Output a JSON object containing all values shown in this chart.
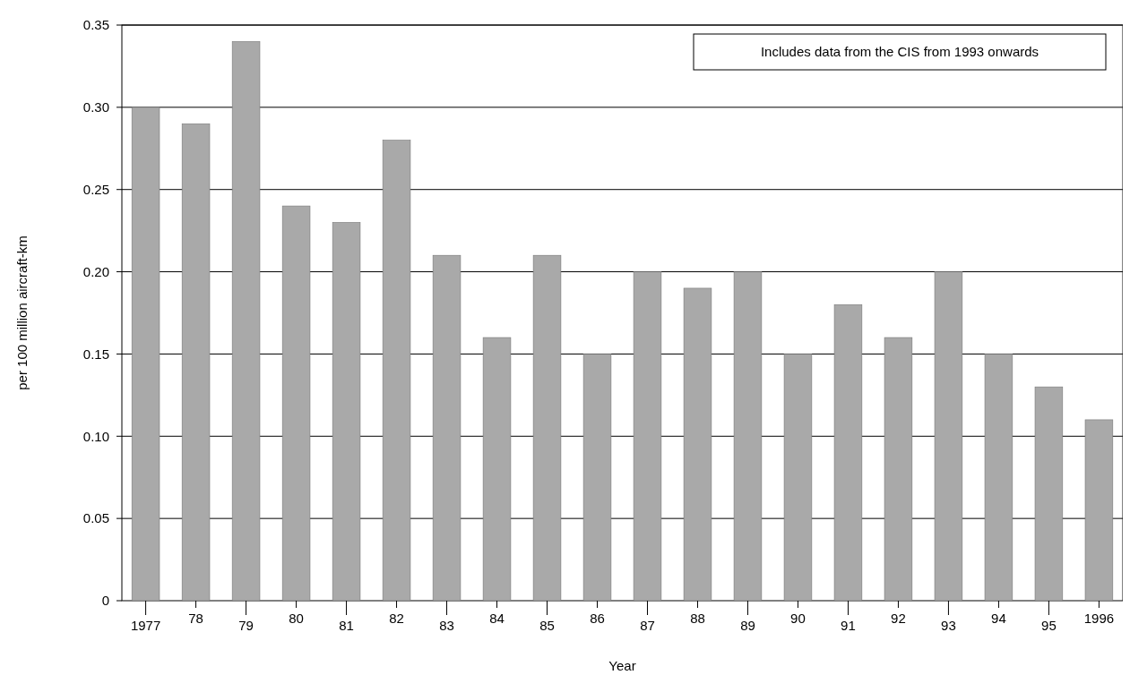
{
  "chart_data": {
    "type": "bar",
    "xlabel": "Year",
    "ylabel": "per 100 million aircraft-km",
    "categories": [
      "1977",
      "78",
      "79",
      "80",
      "81",
      "82",
      "83",
      "84",
      "85",
      "86",
      "87",
      "88",
      "89",
      "90",
      "91",
      "92",
      "93",
      "94",
      "95",
      "1996"
    ],
    "values": [
      0.3,
      0.29,
      0.34,
      0.24,
      0.23,
      0.28,
      0.21,
      0.16,
      0.21,
      0.15,
      0.2,
      0.19,
      0.2,
      0.15,
      0.18,
      0.16,
      0.2,
      0.15,
      0.13,
      0.11
    ],
    "color": "#a9a9a9",
    "ylim": [
      0,
      0.35
    ],
    "yticks": [
      {
        "value": 0,
        "label": "0"
      },
      {
        "value": 0.05,
        "label": "0.05"
      },
      {
        "value": 0.1,
        "label": "0.10"
      },
      {
        "value": 0.15,
        "label": "0.15"
      },
      {
        "value": 0.2,
        "label": "0.20"
      },
      {
        "value": 0.25,
        "label": "0.25"
      },
      {
        "value": 0.3,
        "label": "0.30"
      },
      {
        "value": 0.35,
        "label": "0.35"
      }
    ],
    "grid": "y",
    "annotations": [
      "Includes data from the CIS from 1993 onwards"
    ]
  }
}
